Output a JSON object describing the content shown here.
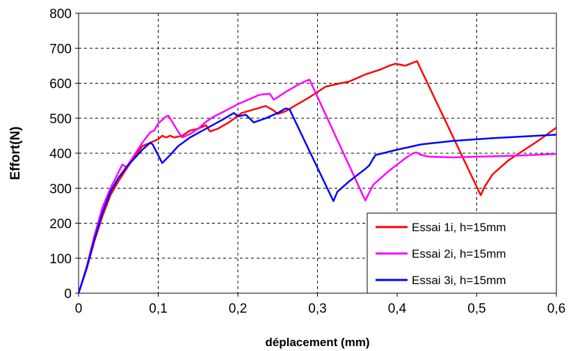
{
  "chart_data": {
    "type": "line",
    "xlabel": "déplacement (mm)",
    "ylabel": "Effort(N)",
    "xlim": [
      0,
      0.6
    ],
    "ylim": [
      0,
      800
    ],
    "x_ticks": [
      "0",
      "0,1",
      "0,2",
      "0,3",
      "0,4",
      "0,5",
      "0,6"
    ],
    "y_ticks": [
      "0",
      "100",
      "200",
      "300",
      "400",
      "500",
      "600",
      "700",
      "800"
    ],
    "grid": "dashed",
    "legend_position": "bottom-right",
    "series": [
      {
        "name": "Essai 1i, h=15mm",
        "color": "#ff0000",
        "points": [
          [
            0,
            0
          ],
          [
            0.01,
            70
          ],
          [
            0.02,
            150
          ],
          [
            0.03,
            220
          ],
          [
            0.04,
            280
          ],
          [
            0.05,
            320
          ],
          [
            0.06,
            355
          ],
          [
            0.07,
            390
          ],
          [
            0.08,
            420
          ],
          [
            0.09,
            430
          ],
          [
            0.1,
            440
          ],
          [
            0.105,
            450
          ],
          [
            0.11,
            445
          ],
          [
            0.115,
            450
          ],
          [
            0.12,
            445
          ],
          [
            0.13,
            450
          ],
          [
            0.14,
            465
          ],
          [
            0.15,
            470
          ],
          [
            0.16,
            480
          ],
          [
            0.165,
            462
          ],
          [
            0.175,
            470
          ],
          [
            0.19,
            490
          ],
          [
            0.205,
            515
          ],
          [
            0.22,
            525
          ],
          [
            0.235,
            535
          ],
          [
            0.245,
            522
          ],
          [
            0.25,
            512
          ],
          [
            0.26,
            520
          ],
          [
            0.275,
            540
          ],
          [
            0.29,
            560
          ],
          [
            0.31,
            590
          ],
          [
            0.325,
            598
          ],
          [
            0.34,
            605
          ],
          [
            0.36,
            625
          ],
          [
            0.38,
            640
          ],
          [
            0.39,
            650
          ],
          [
            0.398,
            656
          ],
          [
            0.41,
            650
          ],
          [
            0.425,
            663
          ],
          [
            0.505,
            280
          ],
          [
            0.51,
            305
          ],
          [
            0.52,
            340
          ],
          [
            0.54,
            380
          ],
          [
            0.56,
            410
          ],
          [
            0.58,
            440
          ],
          [
            0.6,
            473
          ]
        ]
      },
      {
        "name": "Essai 2i, h=15mm",
        "color": "#ff00ff",
        "points": [
          [
            0,
            0
          ],
          [
            0.01,
            75
          ],
          [
            0.02,
            165
          ],
          [
            0.03,
            245
          ],
          [
            0.04,
            300
          ],
          [
            0.05,
            345
          ],
          [
            0.055,
            368
          ],
          [
            0.06,
            360
          ],
          [
            0.07,
            395
          ],
          [
            0.08,
            430
          ],
          [
            0.09,
            460
          ],
          [
            0.095,
            465
          ],
          [
            0.1,
            485
          ],
          [
            0.11,
            505
          ],
          [
            0.113,
            507
          ],
          [
            0.12,
            480
          ],
          [
            0.125,
            462
          ],
          [
            0.13,
            445
          ],
          [
            0.14,
            455
          ],
          [
            0.15,
            470
          ],
          [
            0.16,
            490
          ],
          [
            0.17,
            505
          ],
          [
            0.185,
            522
          ],
          [
            0.2,
            540
          ],
          [
            0.215,
            555
          ],
          [
            0.225,
            565
          ],
          [
            0.23,
            568
          ],
          [
            0.24,
            570
          ],
          [
            0.245,
            553
          ],
          [
            0.25,
            560
          ],
          [
            0.26,
            575
          ],
          [
            0.275,
            595
          ],
          [
            0.287,
            608
          ],
          [
            0.29,
            610
          ],
          [
            0.36,
            265
          ],
          [
            0.37,
            310
          ],
          [
            0.39,
            350
          ],
          [
            0.41,
            385
          ],
          [
            0.42,
            400
          ],
          [
            0.425,
            402
          ],
          [
            0.43,
            395
          ],
          [
            0.44,
            390
          ],
          [
            0.47,
            388
          ],
          [
            0.5,
            390
          ],
          [
            0.55,
            393
          ],
          [
            0.6,
            398
          ]
        ]
      },
      {
        "name": "Essai 3i, h=15mm",
        "color": "#0000ff",
        "points": [
          [
            0,
            0
          ],
          [
            0.01,
            70
          ],
          [
            0.02,
            155
          ],
          [
            0.03,
            230
          ],
          [
            0.04,
            290
          ],
          [
            0.05,
            330
          ],
          [
            0.06,
            360
          ],
          [
            0.07,
            385
          ],
          [
            0.08,
            410
          ],
          [
            0.09,
            430
          ],
          [
            0.093,
            425
          ],
          [
            0.105,
            372
          ],
          [
            0.115,
            395
          ],
          [
            0.125,
            420
          ],
          [
            0.14,
            445
          ],
          [
            0.16,
            470
          ],
          [
            0.18,
            495
          ],
          [
            0.195,
            515
          ],
          [
            0.2,
            505
          ],
          [
            0.21,
            510
          ],
          [
            0.22,
            488
          ],
          [
            0.235,
            500
          ],
          [
            0.25,
            515
          ],
          [
            0.26,
            528
          ],
          [
            0.265,
            525
          ],
          [
            0.32,
            263
          ],
          [
            0.325,
            290
          ],
          [
            0.34,
            320
          ],
          [
            0.36,
            355
          ],
          [
            0.365,
            365
          ],
          [
            0.37,
            385
          ],
          [
            0.373,
            395
          ],
          [
            0.4,
            410
          ],
          [
            0.43,
            425
          ],
          [
            0.47,
            435
          ],
          [
            0.52,
            443
          ],
          [
            0.56,
            448
          ],
          [
            0.6,
            453
          ]
        ]
      }
    ]
  }
}
